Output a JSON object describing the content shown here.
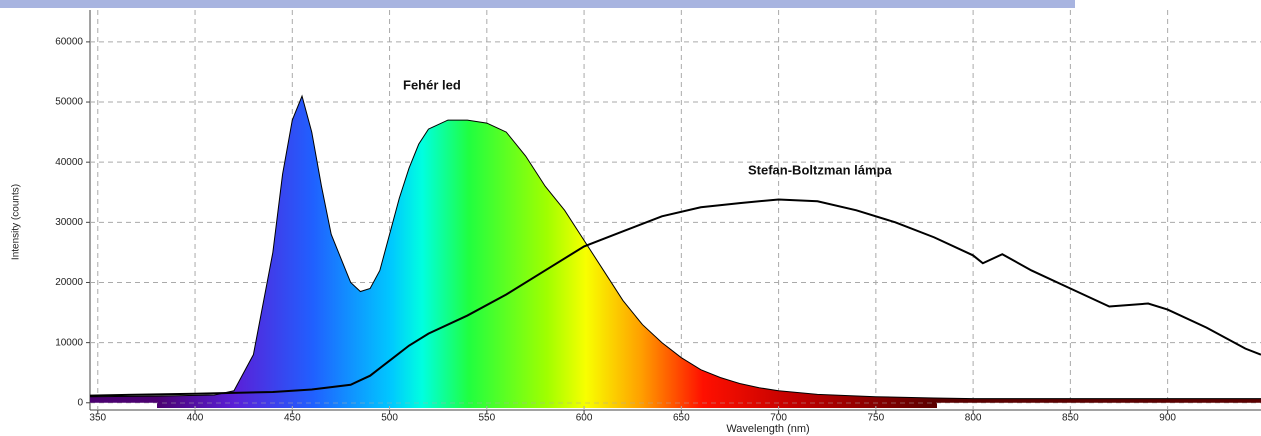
{
  "chart_data": {
    "type": "area-line",
    "x_label": "Wavelength (nm)",
    "y_label": "Intensity (counts)",
    "annotations": [
      "Fehér led",
      "Stefan-Boltzman lámpa"
    ],
    "xlim": [
      346,
      948
    ],
    "ylim": [
      -1200,
      65300
    ],
    "xticks": [
      350,
      400,
      450,
      500,
      550,
      600,
      650,
      700,
      750,
      800,
      850,
      900
    ],
    "yticks": [
      0,
      10000,
      20000,
      30000,
      40000,
      50000,
      60000
    ],
    "grid": true,
    "series": [
      {
        "name": "Fehér led",
        "color": "#000000",
        "x": [
          346,
          380,
          410,
          420,
          430,
          440,
          445,
          450,
          455,
          460,
          465,
          470,
          475,
          480,
          485,
          490,
          495,
          500,
          505,
          510,
          515,
          520,
          530,
          540,
          550,
          560,
          570,
          580,
          590,
          600,
          610,
          620,
          630,
          640,
          650,
          660,
          670,
          680,
          690,
          700,
          720,
          750,
          780,
          800,
          850,
          948
        ],
        "values": [
          1000,
          1100,
          1300,
          2000,
          8000,
          25000,
          38000,
          47000,
          51000,
          45000,
          36000,
          28000,
          24000,
          20000,
          18500,
          19000,
          22000,
          28000,
          34000,
          39000,
          43000,
          45500,
          47000,
          47000,
          46500,
          45000,
          41000,
          36000,
          32000,
          27000,
          22000,
          17000,
          13000,
          10000,
          7500,
          5500,
          4200,
          3200,
          2500,
          2000,
          1400,
          1000,
          800,
          700,
          700,
          700
        ]
      },
      {
        "name": "Stefan-Boltzman lámpa",
        "color": "#000000",
        "x": [
          346,
          400,
          440,
          460,
          480,
          490,
          500,
          510,
          520,
          540,
          560,
          580,
          600,
          620,
          640,
          660,
          680,
          700,
          720,
          740,
          760,
          780,
          800,
          805,
          815,
          830,
          850,
          870,
          890,
          900,
          920,
          940,
          948
        ],
        "values": [
          1200,
          1500,
          1800,
          2200,
          3000,
          4500,
          7000,
          9500,
          11500,
          14500,
          18000,
          22000,
          26000,
          28500,
          31000,
          32500,
          33200,
          33800,
          33500,
          32000,
          30000,
          27500,
          24500,
          23200,
          24700,
          22000,
          19000,
          16000,
          16500,
          15500,
          12500,
          9000,
          8000
        ]
      }
    ]
  }
}
